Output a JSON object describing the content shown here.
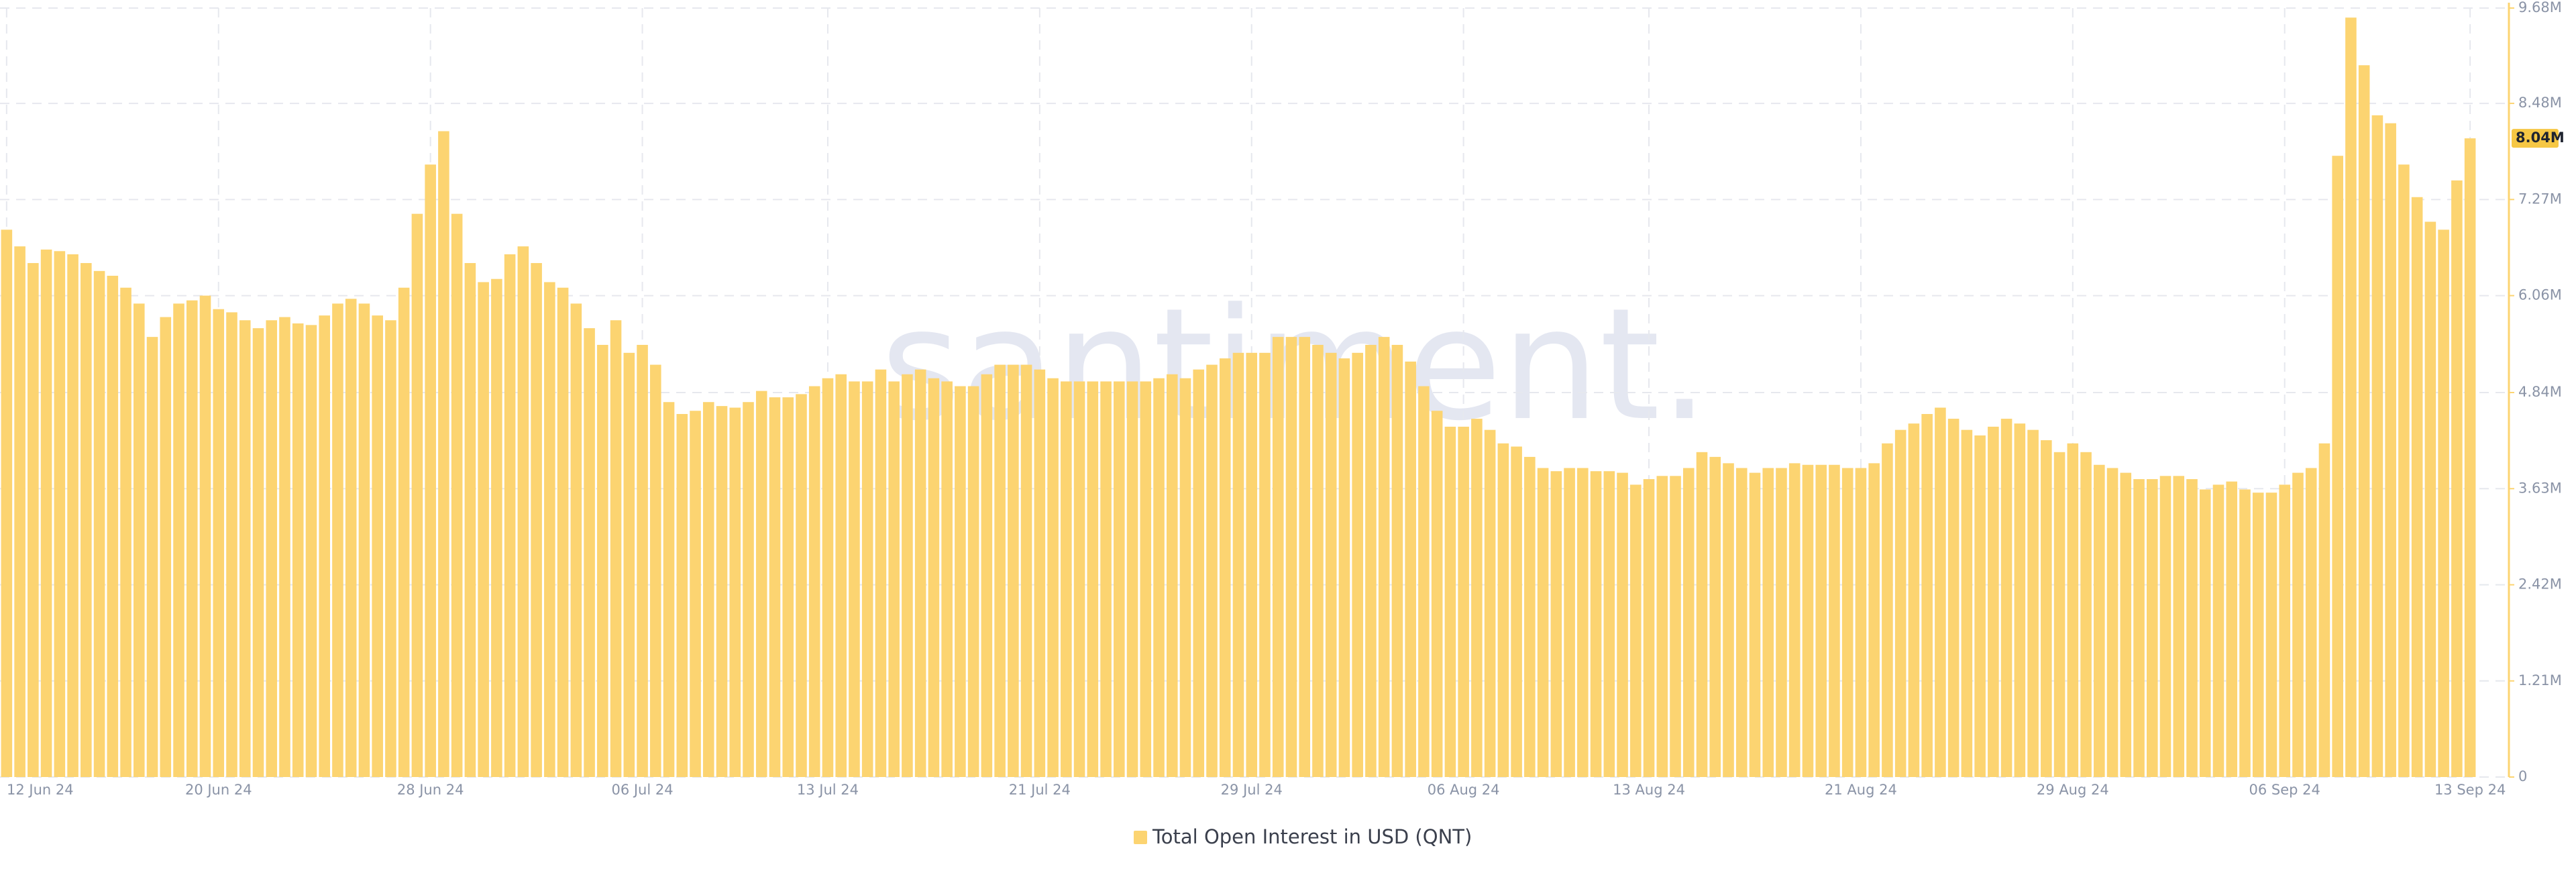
{
  "chart_data": {
    "type": "bar",
    "watermark": "santiment.",
    "categories": [
      "12 Jun 24",
      null,
      null,
      null,
      null,
      null,
      null,
      null,
      null,
      null,
      null,
      null,
      null,
      null,
      null,
      null,
      "20 Jun 24",
      null,
      null,
      null,
      null,
      null,
      null,
      null,
      null,
      null,
      null,
      null,
      null,
      null,
      null,
      null,
      "28 Jun 24",
      null,
      null,
      null,
      null,
      null,
      null,
      null,
      null,
      null,
      null,
      null,
      null,
      null,
      null,
      null,
      "06 Jul 24",
      null,
      null,
      null,
      null,
      null,
      null,
      null,
      null,
      null,
      null,
      null,
      null,
      null,
      "13 Jul 24",
      null,
      null,
      null,
      null,
      null,
      null,
      null,
      null,
      null,
      null,
      null,
      null,
      null,
      null,
      null,
      "21 Jul 24",
      null,
      null,
      null,
      null,
      null,
      null,
      null,
      null,
      null,
      null,
      null,
      null,
      null,
      null,
      null,
      "29 Jul 24",
      null,
      null,
      null,
      null,
      null,
      null,
      null,
      null,
      null,
      null,
      null,
      null,
      null,
      null,
      null,
      "06 Aug 24",
      null,
      null,
      null,
      null,
      null,
      null,
      null,
      null,
      null,
      null,
      null,
      null,
      null,
      "13 Aug 24",
      null,
      null,
      null,
      null,
      null,
      null,
      null,
      null,
      null,
      null,
      null,
      null,
      null,
      null,
      null,
      "21 Aug 24",
      null,
      null,
      null,
      null,
      null,
      null,
      null,
      null,
      null,
      null,
      null,
      null,
      null,
      null,
      null,
      "29 Aug 24",
      null,
      null,
      null,
      null,
      null,
      null,
      null,
      null,
      null,
      null,
      null,
      null,
      null,
      null,
      null,
      "06 Sep 24",
      null,
      null,
      null,
      null,
      null,
      null,
      null,
      null,
      null,
      null,
      null,
      null,
      null,
      "13 Sep 24"
    ],
    "series": [
      {
        "name": "Total Open Interest in USD (QNT)",
        "color": "#fcd471",
        "values": [
          6.89,
          6.68,
          6.47,
          6.64,
          6.62,
          6.58,
          6.47,
          6.37,
          6.31,
          6.16,
          5.96,
          5.54,
          5.79,
          5.96,
          6.0,
          6.06,
          5.89,
          5.85,
          5.75,
          5.65,
          5.75,
          5.79,
          5.71,
          5.69,
          5.81,
          5.96,
          6.02,
          5.96,
          5.81,
          5.75,
          6.16,
          7.09,
          7.71,
          8.13,
          7.09,
          6.47,
          6.23,
          6.27,
          6.58,
          6.68,
          6.47,
          6.23,
          6.16,
          5.96,
          5.65,
          5.44,
          5.75,
          5.34,
          5.44,
          5.19,
          4.72,
          4.57,
          4.61,
          4.72,
          4.67,
          4.65,
          4.72,
          4.86,
          4.78,
          4.78,
          4.82,
          4.92,
          5.02,
          5.07,
          4.98,
          4.98,
          5.13,
          4.98,
          5.07,
          5.13,
          5.02,
          4.98,
          4.92,
          4.92,
          5.07,
          5.19,
          5.19,
          5.19,
          5.13,
          5.02,
          4.98,
          4.98,
          4.98,
          4.98,
          4.98,
          4.98,
          4.98,
          5.02,
          5.07,
          5.02,
          5.13,
          5.19,
          5.27,
          5.34,
          5.34,
          5.34,
          5.54,
          5.54,
          5.54,
          5.44,
          5.34,
          5.27,
          5.34,
          5.44,
          5.54,
          5.44,
          5.23,
          4.92,
          4.61,
          4.41,
          4.41,
          4.51,
          4.37,
          4.2,
          4.16,
          4.03,
          3.89,
          3.85,
          3.89,
          3.89,
          3.85,
          3.85,
          3.83,
          3.68,
          3.75,
          3.79,
          3.79,
          3.89,
          4.09,
          4.03,
          3.95,
          3.89,
          3.83,
          3.89,
          3.89,
          3.95,
          3.93,
          3.93,
          3.93,
          3.89,
          3.89,
          3.95,
          4.2,
          4.37,
          4.45,
          4.57,
          4.65,
          4.51,
          4.37,
          4.3,
          4.41,
          4.51,
          4.45,
          4.37,
          4.24,
          4.09,
          4.2,
          4.09,
          3.93,
          3.89,
          3.83,
          3.75,
          3.75,
          3.79,
          3.79,
          3.75,
          3.62,
          3.68,
          3.72,
          3.62,
          3.58,
          3.58,
          3.68,
          3.83,
          3.89,
          4.2,
          7.82,
          9.56,
          8.96,
          8.33,
          8.23,
          7.71,
          7.3,
          6.99,
          6.89,
          7.51,
          8.04
        ]
      }
    ],
    "ylim": [
      0,
      9.68
    ],
    "yticks": [
      0,
      {
        "value": 1.21,
        "label": "1.21M"
      },
      {
        "value": 2.42,
        "label": "2.42M"
      },
      {
        "value": 3.63,
        "label": "3.63M"
      },
      {
        "value": 4.84,
        "label": "4.84M"
      },
      {
        "value": 6.06,
        "label": "6.06M"
      },
      {
        "value": 7.27,
        "label": "7.27M"
      },
      {
        "value": 8.48,
        "label": "8.48M"
      },
      {
        "value": 9.68,
        "label": "9.68M"
      }
    ],
    "last_value": {
      "value": 8.04,
      "label": "8.04M"
    },
    "grid": true
  }
}
